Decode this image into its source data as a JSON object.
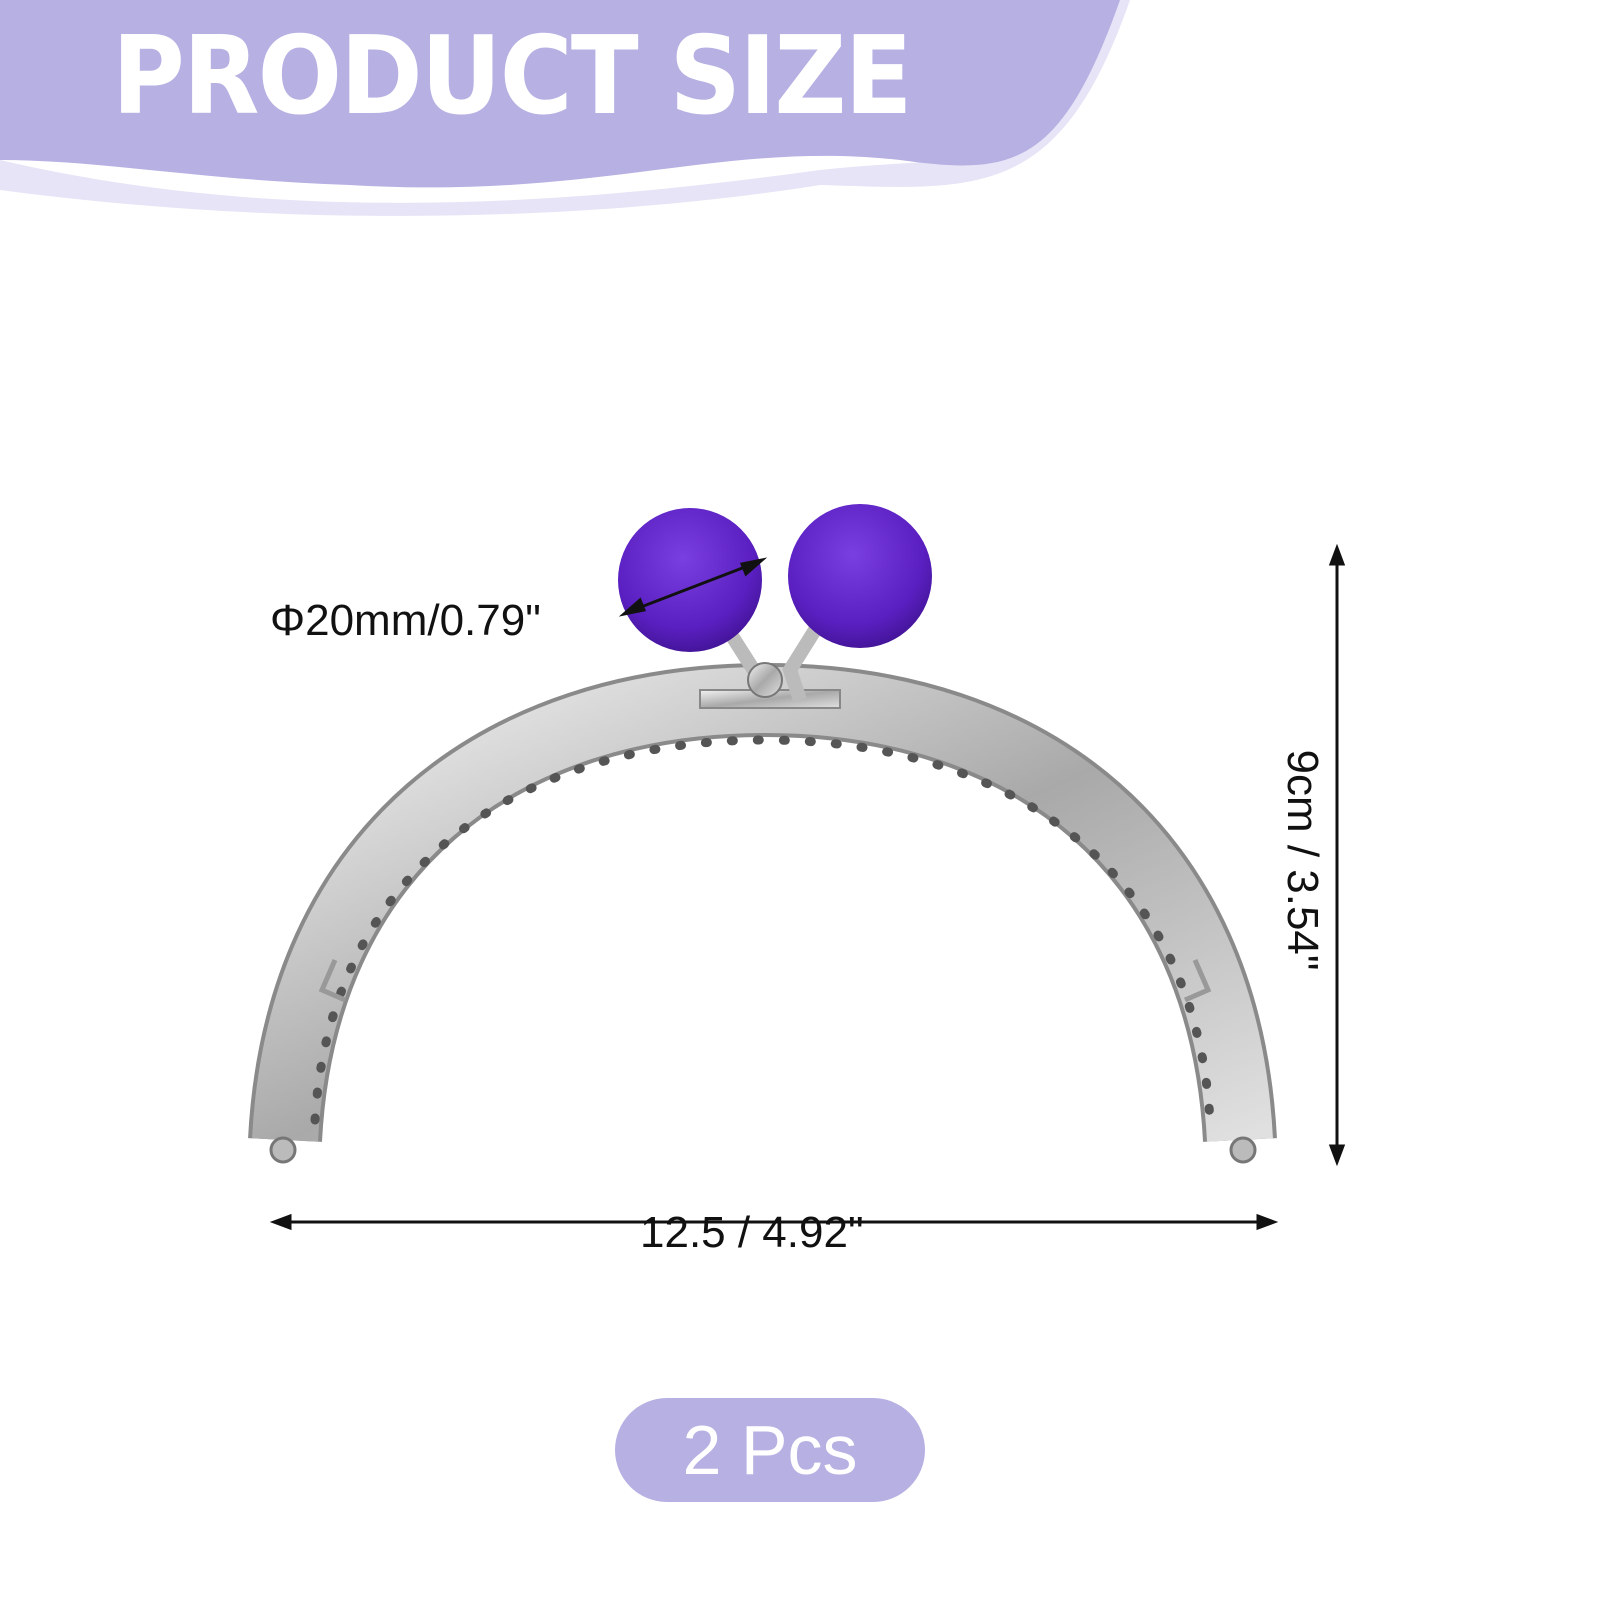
{
  "header": {
    "title": "PRODUCT SIZE"
  },
  "dimensions": {
    "ball_diameter": "Φ20mm/0.79\"",
    "width": "12.5 / 4.92\"",
    "height": "9cm / 3.54\""
  },
  "badge": {
    "quantity": "2 Pcs"
  },
  "colors": {
    "accent": "#b6b0e3",
    "accent_light": "#e6e4f6",
    "ball": "#5a1fc0",
    "metal": "#c8c8c8"
  }
}
